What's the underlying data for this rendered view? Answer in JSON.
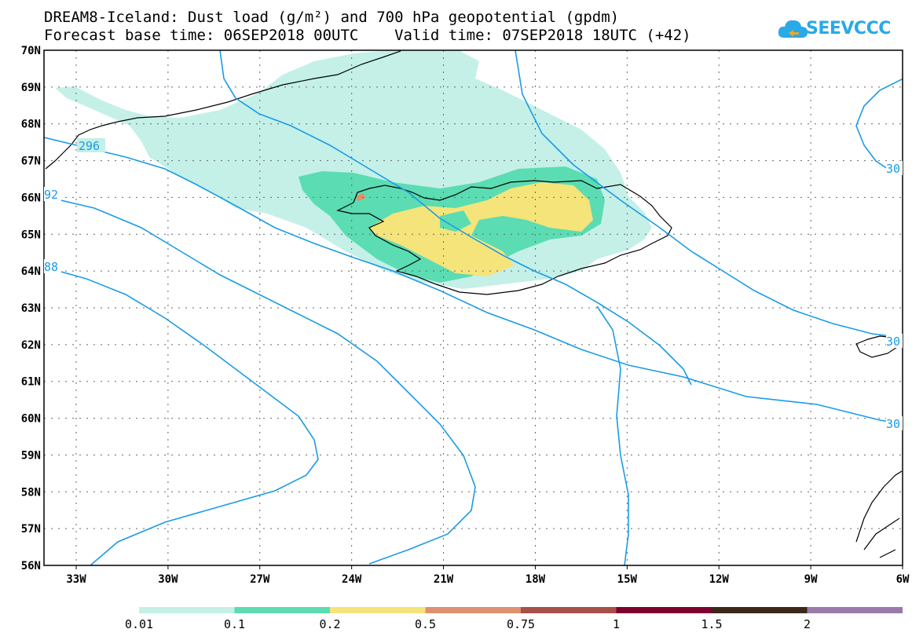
{
  "header": {
    "title_line1": "DREAM8-Iceland: Dust load (g/m²) and 700 hPa geopotential (gpdm)",
    "title_line2": "Forecast base time: 06SEP2018 00UTC    Valid time: 07SEP2018 18UTC (+42)",
    "logo_text": "SEEVCCC"
  },
  "map": {
    "lon_labels": [
      "33W",
      "30W",
      "27W",
      "24W",
      "21W",
      "18W",
      "15W",
      "12W",
      "9W",
      "6W"
    ],
    "lat_labels": [
      "70N",
      "69N",
      "68N",
      "67N",
      "66N",
      "65N",
      "64N",
      "63N",
      "62N",
      "61N",
      "60N",
      "59N",
      "58N",
      "57N",
      "56N"
    ],
    "contour_labels": [
      "296",
      "92",
      "88",
      "30",
      "30",
      "30"
    ],
    "contour_color": "#1a9be6",
    "coastline_color": "#000000"
  },
  "legend": {
    "ticks": [
      "0.01",
      "0.1",
      "0.2",
      "0.5",
      "0.75",
      "1",
      "1.5",
      "2"
    ],
    "colors": [
      "#c4f0e8",
      "#5bdcb2",
      "#f5e47a",
      "#e09070",
      "#a85048",
      "#800030",
      "#3c2818",
      "#9a7aa8"
    ]
  }
}
